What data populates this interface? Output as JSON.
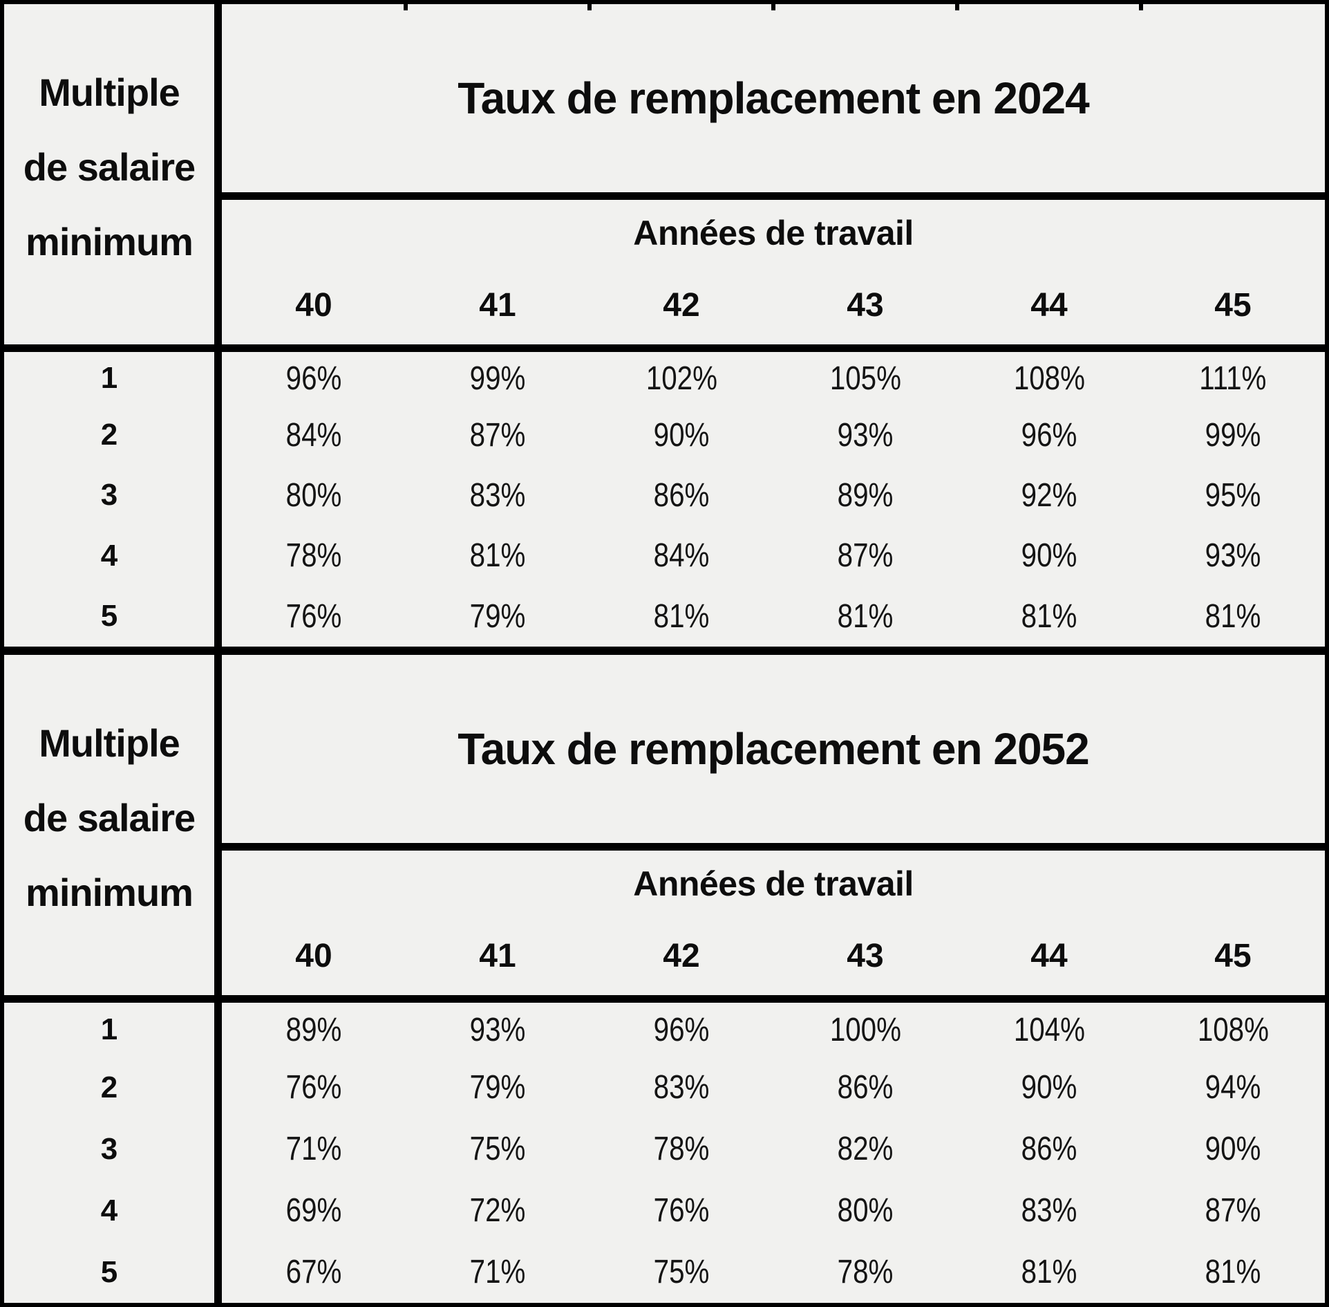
{
  "colors": {
    "background": "#f1f1ef",
    "line": "#000000",
    "text": "#0d0d0d"
  },
  "chart_data": [
    {
      "type": "table",
      "title": "Taux de remplacement en 2024",
      "row_header_lines": [
        "Multiple",
        "de salaire",
        "minimum"
      ],
      "col_group_label": "Années de travail",
      "columns": [
        "40",
        "41",
        "42",
        "43",
        "44",
        "45"
      ],
      "rows": [
        {
          "label": "1",
          "values": [
            "96%",
            "99%",
            "102%",
            "105%",
            "108%",
            "111%"
          ]
        },
        {
          "label": "2",
          "values": [
            "84%",
            "87%",
            "90%",
            "93%",
            "96%",
            "99%"
          ]
        },
        {
          "label": "3",
          "values": [
            "80%",
            "83%",
            "86%",
            "89%",
            "92%",
            "95%"
          ]
        },
        {
          "label": "4",
          "values": [
            "78%",
            "81%",
            "84%",
            "87%",
            "90%",
            "93%"
          ]
        },
        {
          "label": "5",
          "values": [
            "76%",
            "79%",
            "81%",
            "81%",
            "81%",
            "81%"
          ]
        }
      ]
    },
    {
      "type": "table",
      "title": "Taux de remplacement en 2052",
      "row_header_lines": [
        "Multiple",
        "de salaire",
        "minimum"
      ],
      "col_group_label": "Années de travail",
      "columns": [
        "40",
        "41",
        "42",
        "43",
        "44",
        "45"
      ],
      "rows": [
        {
          "label": "1",
          "values": [
            "89%",
            "93%",
            "96%",
            "100%",
            "104%",
            "108%"
          ]
        },
        {
          "label": "2",
          "values": [
            "76%",
            "79%",
            "83%",
            "86%",
            "90%",
            "94%"
          ]
        },
        {
          "label": "3",
          "values": [
            "71%",
            "75%",
            "78%",
            "82%",
            "86%",
            "90%"
          ]
        },
        {
          "label": "4",
          "values": [
            "69%",
            "72%",
            "76%",
            "80%",
            "83%",
            "87%"
          ]
        },
        {
          "label": "5",
          "values": [
            "67%",
            "71%",
            "75%",
            "78%",
            "81%",
            "81%"
          ]
        }
      ]
    }
  ]
}
